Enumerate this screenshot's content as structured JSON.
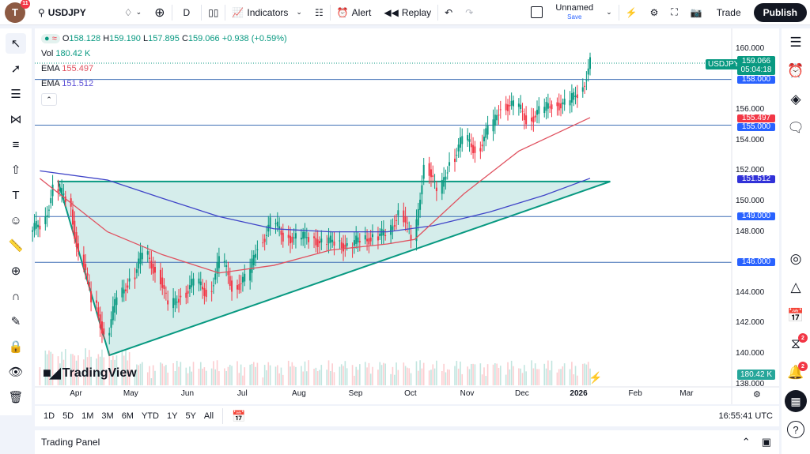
{
  "topbar": {
    "avatar_letter": "T",
    "avatar_badge": "11",
    "symbol": "USDJPY",
    "interval": "D",
    "indicators": "Indicators",
    "alert": "Alert",
    "replay": "Replay",
    "layout_name": "Unnamed",
    "layout_save": "Save",
    "trade": "Trade",
    "publish": "Publish"
  },
  "legend": {
    "open_label": "O",
    "open": "158.128",
    "high_label": "H",
    "high": "159.190",
    "low_label": "L",
    "low": "157.895",
    "close_label": "C",
    "close": "159.066",
    "change": "+0.938 (+0.59%)",
    "vol_label": "Vol",
    "vol": "180.42 K",
    "ema1_label": "EMA",
    "ema1": "155.497",
    "ema2_label": "EMA",
    "ema2": "151.512"
  },
  "price_axis": {
    "ticks": [
      "160.000",
      "156.000",
      "154.000",
      "152.000",
      "150.000",
      "148.000",
      "144.000",
      "142.000",
      "140.000",
      "138.000"
    ],
    "symbol_tag": "USDJPY",
    "last_price": "159.066",
    "countdown": "05:04:18",
    "line_labels": [
      "158.000",
      "155.000",
      "149.000",
      "146.000"
    ],
    "ema1_label": "155.497",
    "ema2_label": "151.512",
    "volume_label": "180.42 K"
  },
  "time_axis": {
    "ticks": [
      "Apr",
      "May",
      "Jun",
      "Jul",
      "Aug",
      "Sep",
      "Oct",
      "Nov",
      "Dec",
      "2026",
      "Feb",
      "Mar"
    ],
    "clock": "16:55:41 UTC"
  },
  "timeframes": [
    "1D",
    "5D",
    "1M",
    "3M",
    "6M",
    "YTD",
    "1Y",
    "5Y",
    "All"
  ],
  "logo": "TradingView",
  "trading_panel": "Trading Panel",
  "right_badges": {
    "ideas": "2",
    "alerts": "2"
  },
  "colors": {
    "up": "#089981",
    "down": "#f23645",
    "hline": "#2962ff",
    "ema_fast": "#e05260",
    "ema_slow": "#3f44c8",
    "triangle_fill": "#b2dfdb",
    "triangle_stroke": "#089981"
  },
  "chart_data": {
    "type": "candlestick",
    "symbol": "USDJPY",
    "interval": "D",
    "ylim": [
      138,
      161
    ],
    "weekly_dates": [
      "2025-03-14",
      "2025-03-21",
      "2025-03-28",
      "2025-04-04",
      "2025-04-11",
      "2025-04-18",
      "2025-04-25",
      "2025-05-02",
      "2025-05-09",
      "2025-05-16",
      "2025-05-23",
      "2025-05-30",
      "2025-06-06",
      "2025-06-13",
      "2025-06-20",
      "2025-06-27",
      "2025-07-04",
      "2025-07-11",
      "2025-07-18",
      "2025-07-25",
      "2025-08-01",
      "2025-08-08",
      "2025-08-15",
      "2025-08-22",
      "2025-08-29",
      "2025-09-05",
      "2025-09-12",
      "2025-09-19",
      "2025-09-26",
      "2025-10-03",
      "2025-10-10",
      "2025-10-17",
      "2025-10-24",
      "2025-10-31",
      "2025-11-07",
      "2025-11-14",
      "2025-11-21",
      "2025-11-28",
      "2025-12-05",
      "2025-12-12",
      "2025-12-19",
      "2025-12-26",
      "2026-01-02",
      "2026-01-09"
    ],
    "closes": [
      148.5,
      150.8,
      150.2,
      146.5,
      143.5,
      141.2,
      143.7,
      145,
      146.5,
      145.5,
      143,
      144,
      144.6,
      144.1,
      146,
      144.5,
      144.8,
      147.3,
      148.5,
      147.8,
      147.5,
      147.7,
      147.2,
      147.4,
      147,
      147.5,
      147.7,
      147.8,
      149.4,
      147.4,
      152.5,
      150.5,
      152.8,
      154,
      153.5,
      154.6,
      156.4,
      156.2,
      155.5,
      155.8,
      156.5,
      156.3,
      157.2,
      159.066
    ],
    "ema_fast": [
      [
        "2025-03-14",
        151.5
      ],
      [
        "2025-04-20",
        148
      ],
      [
        "2025-05-20",
        146.5
      ],
      [
        "2025-06-20",
        145.3
      ],
      [
        "2025-07-20",
        145.8
      ],
      [
        "2025-08-20",
        146.8
      ],
      [
        "2025-09-20",
        147.2
      ],
      [
        "2025-10-05",
        147.5
      ],
      [
        "2025-11-01",
        150.5
      ],
      [
        "2025-12-01",
        153.3
      ],
      [
        "2026-01-09",
        155.497
      ]
    ],
    "ema_slow": [
      [
        "2025-03-14",
        152
      ],
      [
        "2025-04-20",
        151.4
      ],
      [
        "2025-05-20",
        150.2
      ],
      [
        "2025-06-20",
        149
      ],
      [
        "2025-07-20",
        148.2
      ],
      [
        "2025-08-20",
        148
      ],
      [
        "2025-09-20",
        148
      ],
      [
        "2025-10-15",
        148.4
      ],
      [
        "2025-11-15",
        149.3
      ],
      [
        "2025-12-15",
        150.4
      ],
      [
        "2026-01-09",
        151.512
      ]
    ],
    "horizontal_lines": [
      158,
      155,
      149,
      146
    ],
    "triangle": [
      [
        "2025-03-24",
        151.3
      ],
      [
        "2025-04-21",
        139.9
      ],
      [
        "2026-01-20",
        151.3
      ]
    ]
  }
}
